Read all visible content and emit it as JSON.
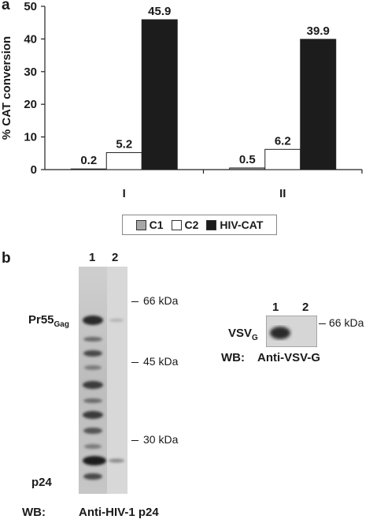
{
  "panel_a_label": "a",
  "panel_b_label": "b",
  "chart_data": {
    "type": "bar",
    "categories": [
      "I",
      "II"
    ],
    "series": [
      {
        "name": "C1",
        "values": [
          0.2,
          0.5
        ],
        "color": "#a6a6a6"
      },
      {
        "name": "C2",
        "values": [
          5.2,
          6.2
        ],
        "color": "#ffffff"
      },
      {
        "name": "HIV-CAT",
        "values": [
          45.9,
          39.9
        ],
        "color": "#1c1c1c"
      }
    ],
    "data_labels": [
      [
        "0.2",
        "5.2",
        "45.9"
      ],
      [
        "0.5",
        "6.2",
        "39.9"
      ]
    ],
    "ylabel": "% CAT conversion",
    "ylim": [
      0,
      50
    ],
    "yticks": [
      "0",
      "10",
      "20",
      "30",
      "40",
      "50"
    ],
    "grid": false,
    "legend_position": "bottom"
  },
  "blot_main": {
    "lane_labels": [
      "1",
      "2"
    ],
    "band_labels": {
      "pr55_main": "Pr55",
      "pr55_sub": "Gag",
      "p24": "p24"
    },
    "markers": [
      "66 kDa",
      "45 kDa",
      "30 kDa"
    ],
    "wb_prefix": "WB:",
    "wb_antibody": "Anti-HIV-1 p24"
  },
  "blot_inset": {
    "lane_labels": [
      "1",
      "2"
    ],
    "band_main": "VSV",
    "band_sub": "G",
    "marker": "66 kDa",
    "wb_prefix": "WB:",
    "wb_antibody": "Anti-VSV-G"
  }
}
